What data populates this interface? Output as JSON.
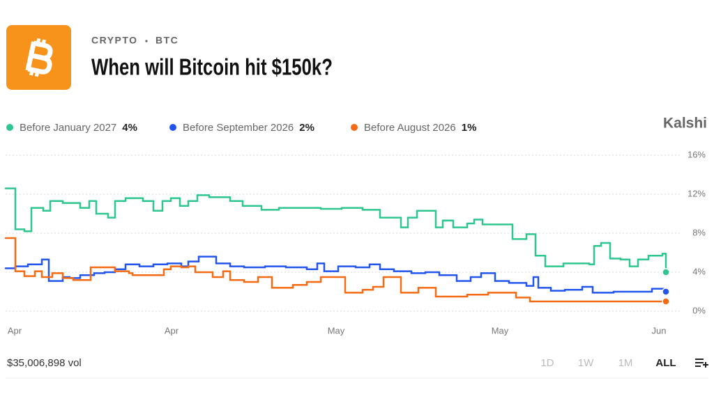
{
  "header": {
    "category": "CRYPTO",
    "subcategory": "BTC",
    "title": "When will Bitcoin hit $150k?"
  },
  "brand": "Kalshi",
  "volume": "$35,006,898 vol",
  "range_buttons": [
    "1D",
    "1W",
    "1M",
    "ALL"
  ],
  "active_range_index": 3,
  "chart_data": {
    "type": "line",
    "step": true,
    "grid": true,
    "xlim": [
      0,
      947
    ],
    "xticks": [
      {
        "value": 13,
        "label": "Apr"
      },
      {
        "value": 238,
        "label": "Apr"
      },
      {
        "value": 474,
        "label": "May"
      },
      {
        "value": 709,
        "label": "May"
      },
      {
        "value": 937,
        "label": "Jun"
      }
    ],
    "ylim": [
      0,
      16
    ],
    "yticks": [
      {
        "value": 0,
        "label": "0%"
      },
      {
        "value": 4,
        "label": "4%"
      },
      {
        "value": 8,
        "label": "8%"
      },
      {
        "value": 12,
        "label": "12%"
      },
      {
        "value": 16,
        "label": "16%"
      }
    ],
    "series": [
      {
        "name": "Before January 2027",
        "color": "#2ec68f",
        "current_label": "4%",
        "x": [
          0,
          14,
          27,
          37,
          54,
          64,
          82,
          107,
          120,
          130,
          147,
          157,
          172,
          197,
          212,
          225,
          237,
          250,
          262,
          275,
          292,
          322,
          340,
          367,
          392,
          452,
          482,
          512,
          537,
          567,
          577,
          590,
          617,
          627,
          642,
          662,
          672,
          684,
          727,
          747,
          760,
          774,
          800,
          837,
          844,
          854,
          867,
          882,
          895,
          907,
          922,
          942,
          947
        ],
        "values": [
          12.6,
          8.4,
          8.2,
          10.6,
          10.3,
          11.3,
          11.1,
          10.6,
          11.3,
          10.0,
          9.6,
          11.3,
          11.6,
          11.3,
          10.3,
          11.3,
          11.6,
          10.8,
          11.3,
          11.9,
          11.7,
          11.3,
          10.8,
          10.4,
          10.6,
          10.5,
          10.6,
          10.4,
          9.6,
          8.6,
          9.6,
          10.3,
          8.6,
          9.3,
          8.6,
          9.0,
          9.4,
          8.9,
          7.4,
          7.9,
          5.7,
          4.6,
          4.9,
          4.8,
          6.7,
          7.0,
          5.4,
          5.3,
          4.6,
          5.3,
          5.7,
          5.9,
          4.0
        ]
      },
      {
        "name": "Before September 2026",
        "color": "#2255ee",
        "current_label": "2%",
        "x": [
          0,
          14,
          32,
          52,
          62,
          82,
          92,
          107,
          127,
          142,
          157,
          172,
          192,
          212,
          232,
          252,
          262,
          277,
          302,
          322,
          342,
          372,
          402,
          432,
          447,
          457,
          477,
          502,
          522,
          537,
          557,
          582,
          602,
          622,
          647,
          667,
          682,
          702,
          722,
          747,
          757,
          764,
          782,
          802,
          827,
          842,
          872,
          927,
          947
        ],
        "values": [
          4.4,
          4.6,
          4.8,
          5.3,
          3.1,
          3.5,
          3.4,
          3.7,
          3.9,
          4.0,
          4.3,
          4.8,
          4.6,
          4.8,
          4.9,
          4.6,
          5.1,
          5.6,
          4.9,
          4.6,
          4.5,
          4.6,
          4.5,
          4.3,
          4.9,
          4.1,
          4.6,
          4.5,
          4.8,
          4.3,
          4.1,
          3.9,
          4.0,
          3.7,
          3.1,
          3.5,
          3.9,
          3.1,
          2.9,
          2.6,
          3.5,
          2.4,
          2.1,
          2.2,
          2.5,
          1.9,
          2.0,
          2.3,
          2.0
        ]
      },
      {
        "name": "Before August 2026",
        "color": "#f56a12",
        "current_label": "1%",
        "x": [
          0,
          14,
          27,
          42,
          52,
          67,
          82,
          97,
          122,
          157,
          177,
          182,
          227,
          237,
          252,
          262,
          272,
          297,
          312,
          322,
          342,
          362,
          382,
          412,
          432,
          452,
          487,
          512,
          527,
          542,
          567,
          592,
          617,
          662,
          692,
          732,
          752,
          947
        ],
        "values": [
          7.5,
          4.1,
          3.6,
          4.1,
          3.5,
          3.9,
          3.4,
          3.2,
          4.5,
          4.1,
          3.9,
          3.7,
          4.3,
          4.6,
          4.5,
          4.6,
          4.0,
          3.5,
          4.1,
          3.2,
          3.0,
          3.5,
          2.4,
          2.7,
          3.0,
          3.5,
          1.9,
          2.2,
          2.5,
          3.5,
          1.9,
          2.4,
          1.5,
          1.7,
          1.9,
          1.4,
          1.0,
          1.0
        ]
      }
    ]
  }
}
